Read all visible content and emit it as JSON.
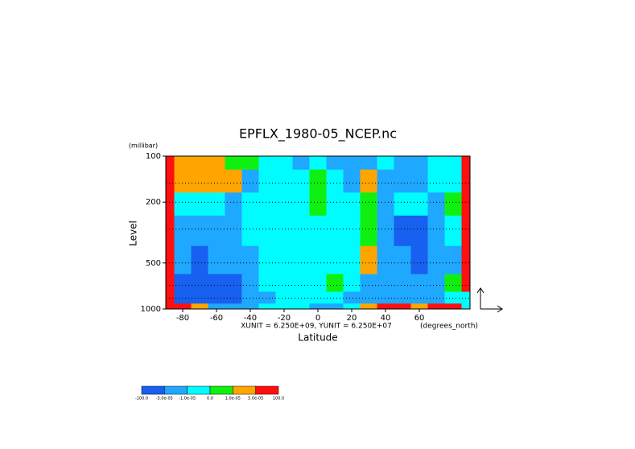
{
  "chart_data": {
    "type": "contour",
    "title": "EPFLX_1980-05_NCEP.nc",
    "y_unit": "(millibar)",
    "ylabel": "Level",
    "xlabel": "Latitude",
    "vector_units": "XUNIT = 6.250E+09, YUNIT = 6.250E+07",
    "x_unit": "(degrees_north)",
    "xlim": [
      -90,
      90
    ],
    "ylim": [
      1000,
      100
    ],
    "log_y": true,
    "xticks": [
      -80,
      -60,
      -40,
      -20,
      0,
      20,
      40,
      60
    ],
    "yticks": [
      100,
      200,
      500,
      1000
    ],
    "x": [
      -90,
      -80,
      -70,
      -60,
      -50,
      -40,
      -30,
      -20,
      -10,
      0,
      10,
      20,
      30,
      40,
      50,
      60,
      70,
      80,
      90
    ],
    "y": [
      100,
      150,
      200,
      300,
      500,
      700,
      850,
      1000
    ],
    "z": [
      [
        8e-05,
        3e-05,
        3e-05,
        3e-05,
        5e-06,
        5e-06,
        -5e-06,
        -5e-06,
        -3e-05,
        -5e-06,
        -3e-05,
        -3e-05,
        -3e-05,
        -5e-06,
        -3e-05,
        -3e-05,
        -5e-06,
        -5e-06,
        8e-05
      ],
      [
        8e-05,
        3e-05,
        3e-05,
        3e-05,
        3e-05,
        -3e-05,
        -5e-06,
        -5e-06,
        -5e-06,
        5e-06,
        -5e-06,
        -3e-05,
        3e-05,
        -3e-05,
        -3e-05,
        -3e-05,
        -5e-06,
        -5e-06,
        8e-05
      ],
      [
        8e-05,
        -5e-06,
        -5e-06,
        -5e-06,
        -3e-05,
        -5e-06,
        -5e-06,
        -5e-06,
        -5e-06,
        5e-06,
        -5e-06,
        -5e-06,
        5e-06,
        -3e-05,
        -5e-06,
        -5e-06,
        -3e-05,
        5e-06,
        8e-05
      ],
      [
        8e-05,
        -3e-05,
        -3e-05,
        -3e-05,
        -3e-05,
        -5e-06,
        -5e-06,
        -5e-06,
        -5e-06,
        -5e-06,
        -5e-06,
        -5e-06,
        5e-06,
        -3e-05,
        -8e-05,
        -8e-05,
        -3e-05,
        -5e-06,
        8e-05
      ],
      [
        8e-05,
        -3e-05,
        -8e-05,
        -3e-05,
        -3e-05,
        -3e-05,
        -5e-06,
        -5e-06,
        -5e-06,
        -5e-06,
        -5e-06,
        -5e-06,
        3e-05,
        -3e-05,
        -3e-05,
        -8e-05,
        -3e-05,
        -3e-05,
        8e-05
      ],
      [
        8e-05,
        -8e-05,
        -8e-05,
        -8e-05,
        -8e-05,
        -3e-05,
        -5e-06,
        -5e-06,
        -5e-06,
        -5e-06,
        5e-06,
        -5e-06,
        -3e-05,
        -3e-05,
        -3e-05,
        -3e-05,
        -3e-05,
        5e-06,
        8e-05
      ],
      [
        8e-05,
        -8e-05,
        -8e-05,
        -8e-05,
        -8e-05,
        -3e-05,
        -3e-05,
        -5e-06,
        -5e-06,
        -5e-06,
        -5e-06,
        -3e-05,
        -3e-05,
        -3e-05,
        -3e-05,
        -3e-05,
        -3e-05,
        -5e-06,
        -5e-06
      ],
      [
        8e-05,
        8e-05,
        3e-05,
        -3e-05,
        -3e-05,
        -3e-05,
        -5e-06,
        -5e-06,
        -5e-06,
        -3e-05,
        -3e-05,
        -5e-06,
        3e-05,
        8e-05,
        8e-05,
        3e-05,
        8e-05,
        8e-05,
        -5e-06
      ]
    ],
    "levels": [
      {
        "value": -100,
        "label": "-100.0"
      },
      {
        "value": -5e-05,
        "label": "-5.0e-05"
      },
      {
        "value": -1e-05,
        "label": "-1.0e-05"
      },
      {
        "value": 0,
        "label": "0.0"
      },
      {
        "value": 1e-05,
        "label": "1.0e-05"
      },
      {
        "value": 5e-05,
        "label": "5.0e-05"
      },
      {
        "value": 100,
        "label": "100.0"
      }
    ],
    "colors": [
      "#1760f0",
      "#1fa8ff",
      "#00fcff",
      "#10f010",
      "#ffa500",
      "#ff1010"
    ],
    "grid": true
  }
}
